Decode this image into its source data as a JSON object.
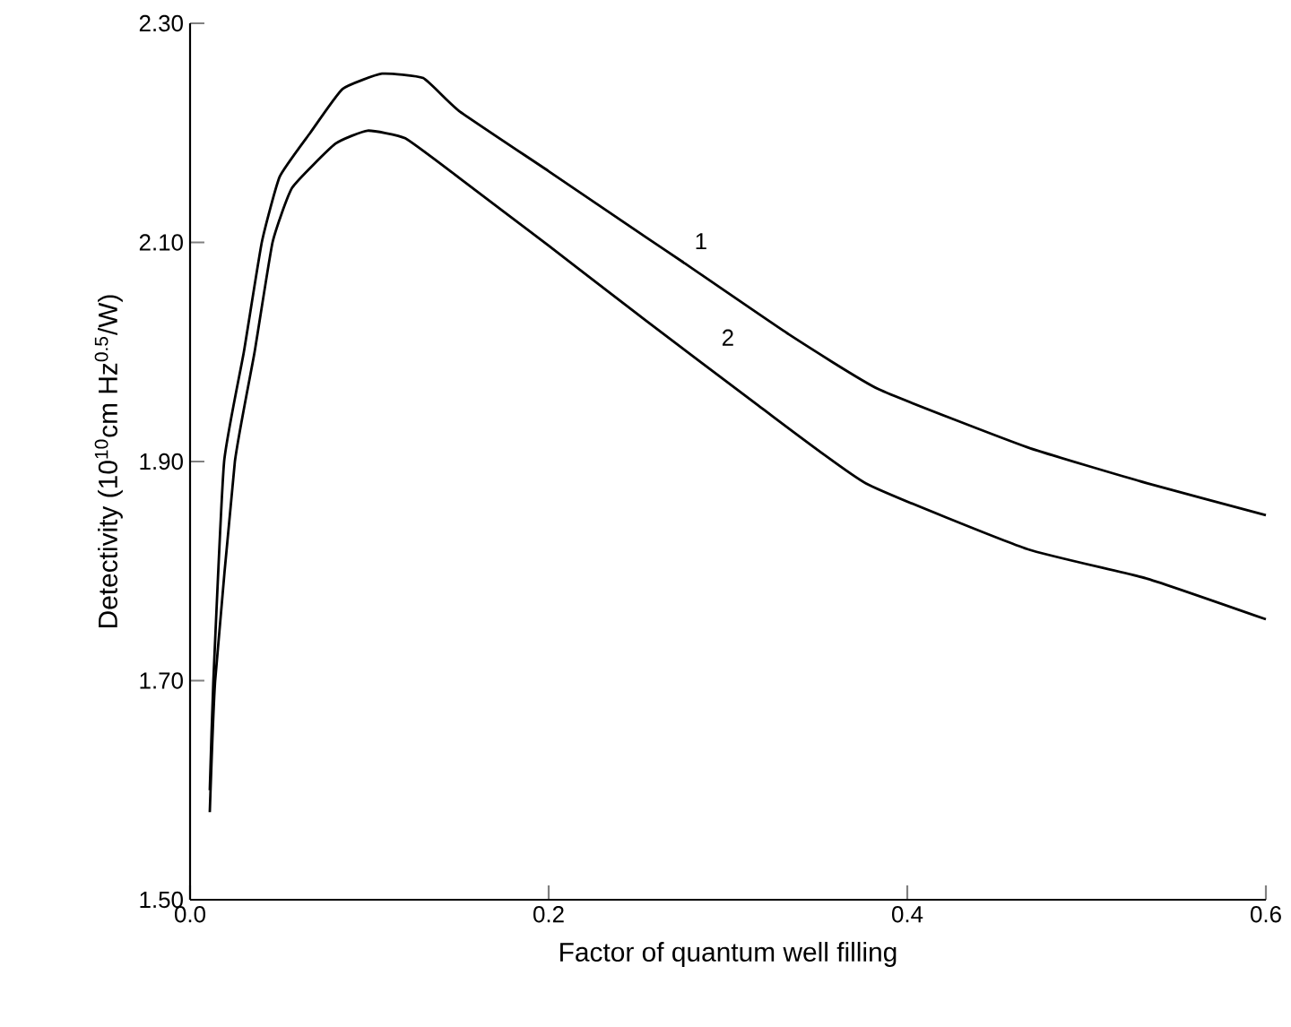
{
  "chart_data": {
    "type": "line",
    "xlabel": "Factor of quantum well filling",
    "ylabel": "Detectivity (10$^{10}$cm Hz$^{0.5}$/W)",
    "xlim": [
      0,
      0.6
    ],
    "ylim": [
      1.5,
      2.3
    ],
    "xticks": [
      {
        "value": 0,
        "label": "0.0"
      },
      {
        "value": 0.2,
        "label": "0.2"
      },
      {
        "value": 0.4,
        "label": "0.4"
      },
      {
        "value": 0.6,
        "label": "0.6"
      }
    ],
    "yticks": [
      {
        "value": 1.5,
        "label": "1.50"
      },
      {
        "value": 1.7,
        "label": "1.70"
      },
      {
        "value": 1.9,
        "label": "1.90"
      },
      {
        "value": 2.1,
        "label": "2.10"
      },
      {
        "value": 2.3,
        "label": "2.30"
      }
    ],
    "grid": false,
    "marker": "none",
    "line_style": "solid",
    "series": [
      {
        "color": "#000000",
        "x": [
          0.011,
          0.013,
          0.019,
          0.03,
          0.04,
          0.05,
          0.067,
          0.085,
          0.107,
          0.13,
          0.15,
          0.2,
          0.254,
          0.274,
          0.334,
          0.384,
          0.467,
          0.534,
          0.6
        ],
        "values": [
          1.6,
          1.7,
          1.9,
          2.0,
          2.1,
          2.16,
          2.2,
          2.24,
          2.254,
          2.25,
          2.22,
          2.165,
          2.105,
          2.083,
          2.016,
          1.966,
          1.913,
          1.88,
          1.851
        ]
      },
      {
        "color": "#000000",
        "x": [
          0.011,
          0.014,
          0.025,
          0.036,
          0.046,
          0.057,
          0.081,
          0.099,
          0.12,
          0.15,
          0.2,
          0.234,
          0.254,
          0.317,
          0.377,
          0.467,
          0.534,
          0.6
        ],
        "values": [
          1.58,
          1.7,
          1.9,
          2.0,
          2.1,
          2.15,
          2.19,
          2.202,
          2.195,
          2.159,
          2.097,
          2.054,
          2.029,
          1.951,
          1.88,
          1.82,
          1.793,
          1.756
        ]
      }
    ],
    "annotations": [
      "1",
      "2"
    ]
  }
}
